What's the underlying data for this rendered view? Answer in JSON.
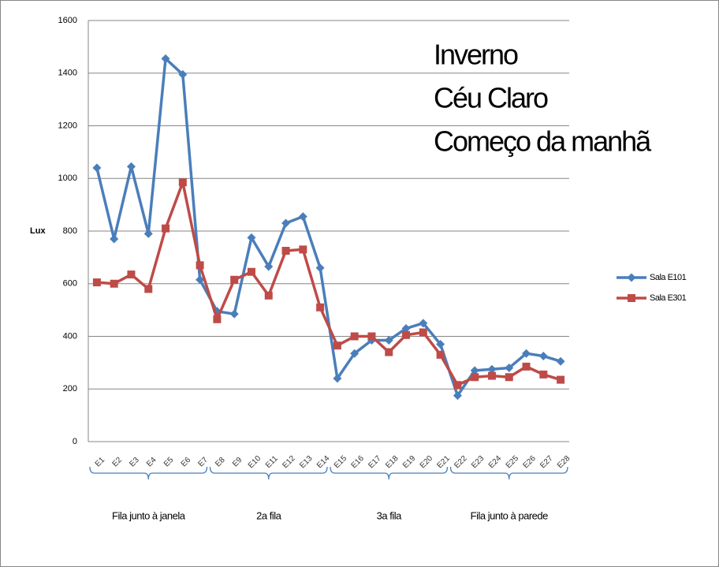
{
  "chart_data": {
    "type": "line",
    "annotations": [
      "Inverno",
      "Céu Claro",
      "Começo da manhã"
    ],
    "ylabel": "Lux",
    "categories": [
      "E1",
      "E2",
      "E3",
      "E4",
      "E5",
      "E6",
      "E7",
      "E8",
      "E9",
      "E10",
      "E11",
      "E12",
      "E13",
      "E14",
      "E15",
      "E16",
      "E17",
      "E18",
      "E19",
      "E20",
      "E21",
      "E22",
      "E23",
      "E24",
      "E25",
      "E26",
      "E27",
      "E28"
    ],
    "groups": [
      "Fila junto à janela",
      "2a fila",
      "3a fila",
      "Fila junto à parede"
    ],
    "series": [
      {
        "name": "Sala E101",
        "color": "#4a7ebb",
        "marker": "diamond",
        "values": [
          1040,
          770,
          1045,
          790,
          1455,
          1395,
          615,
          495,
          485,
          775,
          665,
          830,
          855,
          660,
          240,
          335,
          385,
          385,
          430,
          450,
          370,
          175,
          270,
          275,
          280,
          335,
          325,
          305
        ]
      },
      {
        "name": "Sala E301",
        "color": "#be4b48",
        "marker": "square",
        "values": [
          605,
          600,
          635,
          580,
          810,
          985,
          670,
          465,
          615,
          645,
          555,
          725,
          730,
          510,
          365,
          400,
          400,
          340,
          405,
          415,
          330,
          215,
          245,
          250,
          245,
          285,
          255,
          235
        ]
      }
    ],
    "ylim": [
      0,
      1600
    ],
    "yticks": [
      0,
      200,
      400,
      600,
      800,
      1000,
      1200,
      1400,
      1600
    ],
    "grid": true
  }
}
